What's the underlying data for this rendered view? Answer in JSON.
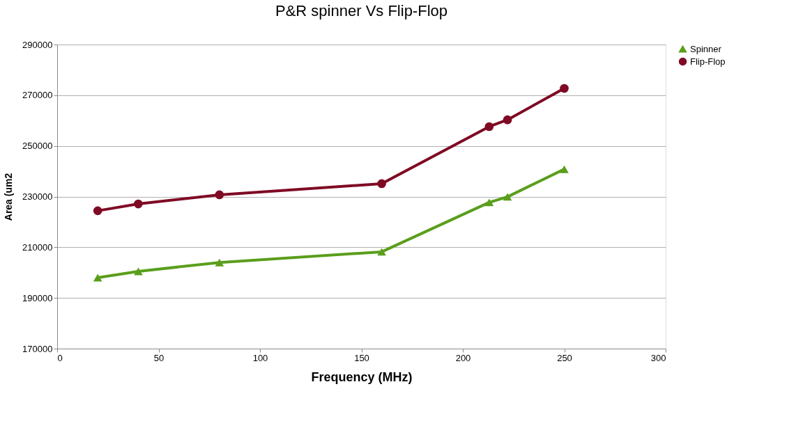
{
  "chart_data": {
    "type": "line",
    "title": "P&R spinner Vs Flip-Flop",
    "xlabel": "Frequency (MHz)",
    "ylabel": "Area (um2",
    "x": [
      20,
      40,
      80,
      160,
      213,
      222,
      250
    ],
    "series": [
      {
        "name": "Spinner",
        "color": "#5a9e1c",
        "marker": "triangle",
        "values": [
          198000,
          200500,
          204000,
          208200,
          227700,
          229900,
          240800
        ]
      },
      {
        "name": "Flip-Flop",
        "color": "#7f0a24",
        "marker": "circle",
        "values": [
          224400,
          227100,
          230700,
          235100,
          257600,
          260300,
          272700
        ]
      }
    ],
    "xlim": [
      0,
      300
    ],
    "xticks": [
      0,
      50,
      100,
      150,
      200,
      250,
      300
    ],
    "ylim": [
      170000,
      290000
    ],
    "yticks": [
      170000,
      190000,
      210000,
      230000,
      250000,
      270000,
      290000
    ],
    "grid": "y",
    "legend": "right",
    "line_style": "solid"
  }
}
